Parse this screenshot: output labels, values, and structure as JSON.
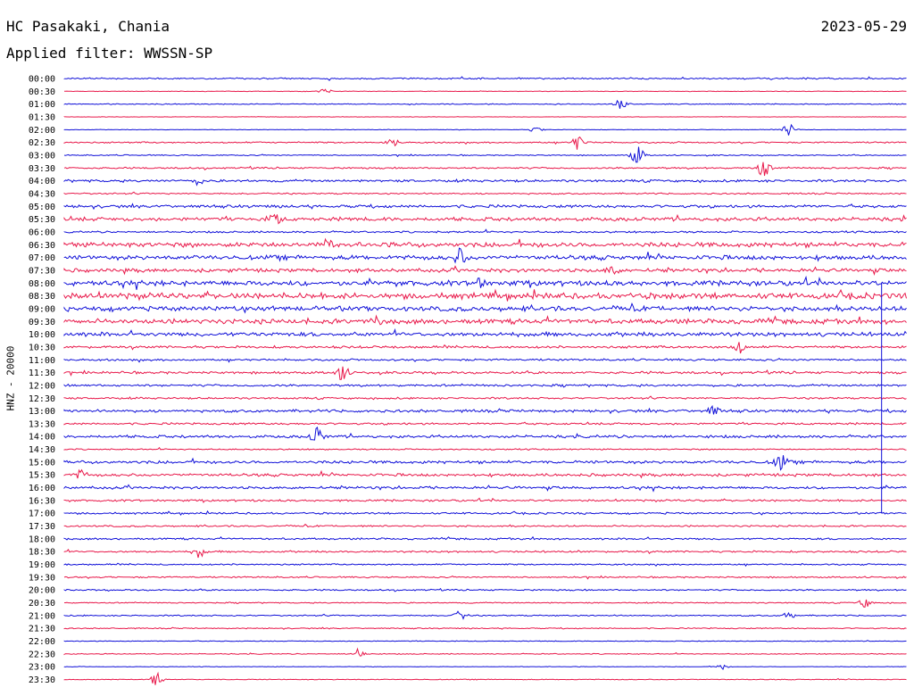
{
  "header": {
    "station": "HC Pasakaki, Chania",
    "date": "2023-05-29",
    "filter": "Applied filter: WWSSN-SP"
  },
  "chart_data": {
    "type": "line",
    "title": "HC Pasakaki, Chania",
    "ylabel": "HNZ - 20000",
    "colors": [
      "#1010d8",
      "#e8184a"
    ],
    "categories": [
      "00:00",
      "00:30",
      "01:00",
      "01:30",
      "02:00",
      "02:30",
      "03:00",
      "03:30",
      "04:00",
      "04:30",
      "05:00",
      "05:30",
      "06:00",
      "06:30",
      "07:00",
      "07:30",
      "08:00",
      "08:30",
      "09:00",
      "09:30",
      "10:00",
      "10:30",
      "11:00",
      "11:30",
      "12:00",
      "12:30",
      "13:00",
      "13:30",
      "14:00",
      "14:30",
      "15:00",
      "15:30",
      "16:00",
      "16:30",
      "17:00",
      "17:30",
      "18:00",
      "18:30",
      "19:00",
      "19:30",
      "20:00",
      "20:30",
      "21:00",
      "21:30",
      "22:00",
      "22:30",
      "23:00",
      "23:30"
    ],
    "noise_level": [
      0.8,
      0.3,
      0.5,
      0.2,
      0.3,
      0.8,
      0.6,
      0.9,
      1.3,
      0.8,
      1.6,
      2.0,
      1.0,
      2.6,
      2.4,
      2.0,
      2.8,
      3.2,
      2.6,
      2.6,
      2.2,
      1.3,
      1.1,
      1.3,
      1.2,
      1.0,
      1.5,
      1.1,
      1.5,
      0.7,
      1.6,
      1.5,
      1.4,
      1.1,
      1.0,
      0.9,
      1.0,
      1.0,
      0.8,
      0.8,
      0.8,
      0.6,
      0.7,
      0.6,
      0.4,
      0.5,
      0.3,
      0.4
    ],
    "events": [
      {
        "row": "00:30",
        "t": 0.31,
        "amp": 3
      },
      {
        "row": "01:00",
        "t": 0.66,
        "amp": 5
      },
      {
        "row": "02:00",
        "t": 0.56,
        "amp": 3
      },
      {
        "row": "02:00",
        "t": 0.86,
        "amp": 8
      },
      {
        "row": "02:30",
        "t": 0.39,
        "amp": 4
      },
      {
        "row": "02:30",
        "t": 0.61,
        "amp": 9
      },
      {
        "row": "03:00",
        "t": 0.68,
        "amp": 11
      },
      {
        "row": "03:30",
        "t": 0.83,
        "amp": 10
      },
      {
        "row": "04:00",
        "t": 0.16,
        "amp": 4
      },
      {
        "row": "05:30",
        "t": 0.25,
        "amp": 6
      },
      {
        "row": "06:30",
        "t": 0.31,
        "amp": 6
      },
      {
        "row": "07:00",
        "t": 0.47,
        "amp": 10
      },
      {
        "row": "07:30",
        "t": 0.65,
        "amp": 5
      },
      {
        "row": "08:00",
        "t": 0.49,
        "amp": 6
      },
      {
        "row": "09:30",
        "t": 0.37,
        "amp": 5
      },
      {
        "row": "10:30",
        "t": 0.8,
        "amp": 7
      },
      {
        "row": "11:30",
        "t": 0.33,
        "amp": 9
      },
      {
        "row": "13:00",
        "t": 0.77,
        "amp": 5
      },
      {
        "row": "14:00",
        "t": 0.3,
        "amp": 10
      },
      {
        "row": "15:00",
        "t": 0.85,
        "amp": 9
      },
      {
        "row": "15:30",
        "t": 0.02,
        "amp": 5
      },
      {
        "row": "18:30",
        "t": 0.16,
        "amp": 6
      },
      {
        "row": "20:30",
        "t": 0.95,
        "amp": 5
      },
      {
        "row": "21:00",
        "t": 0.47,
        "amp": 5
      },
      {
        "row": "21:00",
        "t": 0.86,
        "amp": 4
      },
      {
        "row": "22:30",
        "t": 0.35,
        "amp": 6
      },
      {
        "row": "23:00",
        "t": 0.78,
        "amp": 3
      },
      {
        "row": "23:30",
        "t": 0.11,
        "amp": 7
      }
    ],
    "vertical_marker": {
      "row_start": "08:00",
      "row_end": "17:00",
      "t": 0.97
    },
    "grid": false
  }
}
